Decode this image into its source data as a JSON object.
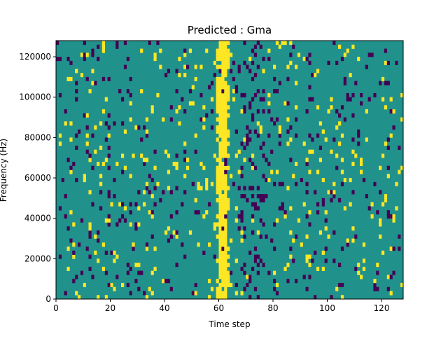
{
  "chart_data": {
    "type": "heatmap",
    "title": "Predicted : Gma",
    "xlabel": "Time step",
    "ylabel": "Frequency (Hz)",
    "xlim": [
      0,
      128
    ],
    "ylim": [
      0,
      128000
    ],
    "x_ticks": [
      0,
      20,
      40,
      60,
      80,
      100,
      120
    ],
    "y_ticks": [
      0,
      20000,
      40000,
      60000,
      80000,
      100000,
      120000
    ],
    "colormap": {
      "low": "#440154",
      "mid": "#21918c",
      "high": "#fde725"
    },
    "background_level": "mid",
    "grid_rows": 64,
    "grid_cols": 128,
    "bright_band": {
      "x_start": 59,
      "x_end": 63,
      "level": "high",
      "note": "strong yellow vertical band around time step 60-62"
    },
    "dark_cluster": {
      "x_start": 68,
      "x_end": 76,
      "level": "low"
    },
    "sparse_cells_note": "scattered yellow and purple cells across the teal background"
  }
}
